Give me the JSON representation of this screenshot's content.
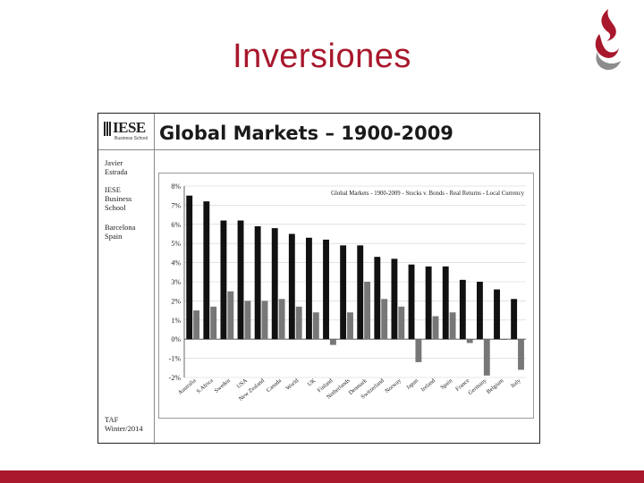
{
  "slide": {
    "title": "Inversiones",
    "accent_color": "#a8172c"
  },
  "embedded": {
    "header_title": "Global Markets – 1900-2009",
    "logo_text": "IESE",
    "logo_subtext": "Business School",
    "sidebar": {
      "author_line1": "Javier",
      "author_line2": "Estrada",
      "school_line1": "IESE",
      "school_line2": "Business",
      "school_line3": "School",
      "city_line1": "Barcelona",
      "city_line2": "Spain",
      "footer_line1": "TAF",
      "footer_line2": "Winter/2014"
    }
  },
  "chart_data": {
    "type": "bar",
    "title": "Global Markets - 1900-2009 - Stocks v. Bonds - Real Returns - Local Currency",
    "categories": [
      "Australia",
      "S.Africa",
      "Sweden",
      "USA",
      "New Zealand",
      "Canada",
      "World",
      "UK",
      "Finland",
      "Netherlands",
      "Denmark",
      "Switzerland",
      "Norway",
      "Japan",
      "Ireland",
      "Spain",
      "France",
      "Germany",
      "Belgium",
      "Italy"
    ],
    "series": [
      {
        "name": "Stocks",
        "color": "#111111",
        "values": [
          7.5,
          7.2,
          6.2,
          6.2,
          5.9,
          5.8,
          5.5,
          5.3,
          5.2,
          4.9,
          4.9,
          4.3,
          4.2,
          3.9,
          3.8,
          3.8,
          3.1,
          3.0,
          2.6,
          2.1
        ]
      },
      {
        "name": "Bonds",
        "color": "#777777",
        "values": [
          1.5,
          1.7,
          2.5,
          2.0,
          2.0,
          2.1,
          1.7,
          1.4,
          -0.3,
          1.4,
          3.0,
          2.1,
          1.7,
          -1.2,
          1.2,
          1.4,
          -0.2,
          -1.9,
          0.0,
          -1.6
        ]
      }
    ],
    "y_ticks": [
      "8%",
      "7%",
      "6%",
      "5%",
      "4%",
      "3%",
      "2%",
      "1%",
      "0%",
      "-1%",
      "-2%"
    ],
    "ylim": [
      -2,
      8
    ],
    "xlabel": "",
    "ylabel": "",
    "grid": true
  }
}
